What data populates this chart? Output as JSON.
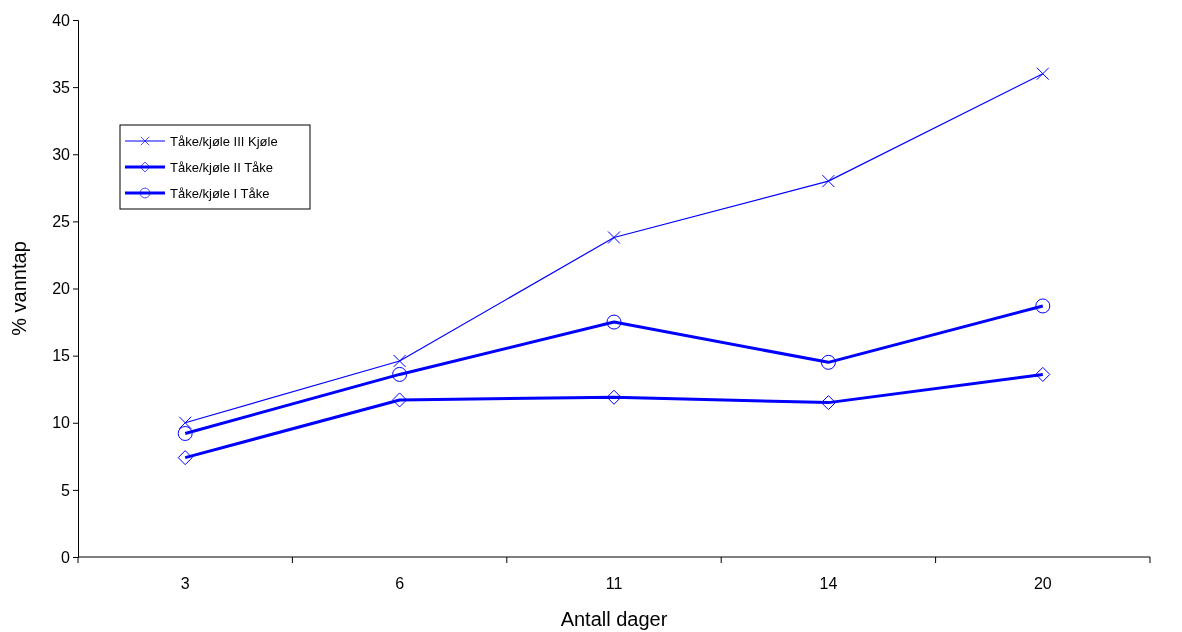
{
  "chart_data": {
    "type": "line",
    "xlabel": "Antall dager",
    "ylabel": "% vanntap",
    "categories": [
      "3",
      "6",
      "11",
      "14",
      "20"
    ],
    "series": [
      {
        "name": "Tåke/kjøle III Kjøle",
        "color": "#0000ff",
        "marker": "cross",
        "values": [
          10.0,
          14.6,
          23.8,
          28.0,
          36.0
        ]
      },
      {
        "name": "Tåke/kjøle II  Tåke",
        "color": "#0000ff",
        "marker": "diamond",
        "values": [
          7.4,
          11.7,
          11.9,
          11.5,
          13.6
        ]
      },
      {
        "name": "Tåke/kjøle I Tåke",
        "color": "#0000ff",
        "marker": "circle",
        "values": [
          9.2,
          13.6,
          17.5,
          14.5,
          18.7
        ]
      }
    ],
    "ylim": [
      0,
      40
    ],
    "yticks": [
      0,
      5,
      10,
      15,
      20,
      25,
      30,
      35,
      40
    ],
    "grid": false,
    "legend": "top left",
    "line_style": "solid"
  }
}
